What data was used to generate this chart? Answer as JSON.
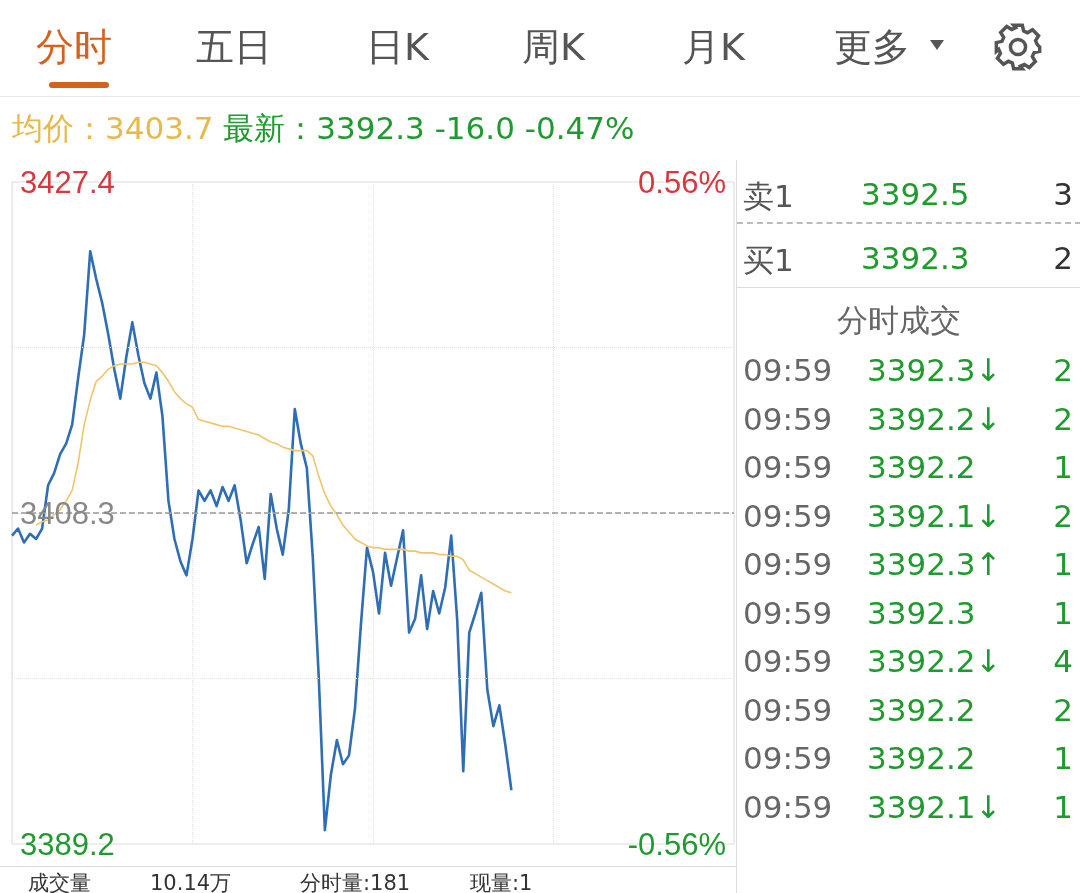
{
  "chart_data": [
    {
      "type": "line",
      "title": "均价：3403.7",
      "subtitle": "最新：3392.3 -16.0 -0.47%",
      "categories": [
        null,
        null,
        null,
        null,
        null,
        null,
        null,
        null,
        null,
        null,
        null,
        null,
        null,
        null,
        null,
        null,
        null,
        null,
        null,
        null,
        null,
        null,
        null,
        null,
        null,
        null,
        null,
        null,
        null,
        null,
        null,
        null,
        null,
        null,
        null,
        null,
        null,
        null,
        null,
        null,
        null,
        null,
        null,
        null,
        null,
        null,
        null,
        null,
        null,
        null,
        null,
        null,
        null,
        null,
        null,
        null,
        null,
        null,
        null,
        null,
        null,
        null,
        null,
        null,
        null,
        null,
        null,
        null,
        null,
        null,
        null,
        null,
        null,
        null,
        null,
        null,
        null,
        null,
        null,
        null,
        null,
        null,
        null,
        null,
        null,
        null,
        null,
        null,
        null,
        null,
        null,
        null,
        null,
        null,
        null,
        null,
        null,
        null,
        null,
        null,
        null,
        null,
        null,
        null,
        null,
        null,
        null,
        null,
        null,
        null,
        null,
        null,
        null,
        null,
        null,
        null,
        null,
        null,
        null,
        null,
        null
      ],
      "series": [
        {
          "color": "#2f6db5",
          "values": [
            3407.0,
            3407.4,
            3406.6,
            3407.1,
            3406.8,
            3407.4,
            3409.9,
            3410.6,
            3411.7,
            3412.3,
            3413.4,
            3416.1,
            3418.6,
            3423.4,
            3421.8,
            3420.4,
            3418.6,
            3416.6,
            3414.9,
            3417.3,
            3419.3,
            3417.4,
            3415.8,
            3414.9,
            3416.4,
            3413.9,
            3409.0,
            3406.8,
            3405.5,
            3404.7,
            3406.8,
            3409.6,
            3409.0,
            3409.6,
            3408.7,
            3409.8,
            3409.0,
            3409.9,
            3407.9,
            3405.4,
            3406.5,
            3407.5,
            3404.5,
            3409.4,
            3407.4,
            3405.9,
            3408.5,
            3414.3,
            3412.3,
            3410.9,
            3405.7,
            3398.7,
            3390.0,
            3393.2,
            3395.2,
            3393.8,
            3394.3,
            3397.0,
            3401.9,
            3406.3,
            3404.9,
            3402.5,
            3406.0,
            3404.1,
            3405.7,
            3407.3,
            3401.4,
            3402.2,
            3404.7,
            3401.6,
            3403.8,
            3402.5,
            3404.0,
            3407.0,
            3402.1,
            3393.4,
            3401.4,
            3402.5,
            3403.7,
            3398.1,
            3396.0,
            3397.2,
            3394.9,
            3392.3,
            null,
            null,
            null,
            null,
            null,
            null,
            null,
            null,
            null,
            null,
            null,
            null,
            null,
            null,
            null,
            null,
            null,
            null,
            null,
            null,
            null,
            null,
            null,
            null,
            null,
            null,
            null,
            null,
            null,
            null,
            null,
            null,
            null,
            null,
            null,
            null,
            null
          ]
        },
        {
          "color": "#f0c46a",
          "values": [
            null,
            null,
            null,
            null,
            3407.6,
            3407.8,
            3407.9,
            3408.2,
            3408.5,
            3409.0,
            3409.6,
            3411.2,
            3413.4,
            3414.8,
            3415.9,
            3416.2,
            3416.6,
            3416.8,
            3416.9,
            3416.9,
            3416.9,
            3417.0,
            3417.0,
            3416.9,
            3416.8,
            3416.4,
            3415.9,
            3415.3,
            3414.9,
            3414.6,
            3414.4,
            3413.7,
            3413.6,
            3413.5,
            3413.4,
            3413.3,
            3413.3,
            3413.2,
            3413.1,
            3413.0,
            3412.9,
            3412.8,
            3412.6,
            3412.4,
            3412.3,
            3412.1,
            3412.0,
            3411.9,
            3411.9,
            3411.9,
            3411.6,
            3410.4,
            3409.4,
            3408.7,
            3408.2,
            3407.6,
            3407.2,
            3406.8,
            3406.6,
            3406.4,
            3406.3,
            3406.3,
            3406.2,
            3406.2,
            3406.2,
            3406.2,
            3406.1,
            3406.1,
            3406.0,
            3406.0,
            3406.0,
            3405.9,
            3405.9,
            3405.8,
            3405.8,
            3405.6,
            3405.0,
            3404.8,
            3404.6,
            3404.4,
            3404.2,
            3404.0,
            3403.8,
            3403.7,
            null,
            null,
            null,
            null,
            null,
            null,
            null,
            null,
            null,
            null,
            null,
            null,
            null,
            null,
            null,
            null,
            null,
            null,
            null,
            null,
            null,
            null,
            null,
            null,
            null,
            null,
            null,
            null,
            null,
            null,
            null,
            null,
            null,
            null,
            null,
            null,
            null
          ]
        }
      ],
      "ylim": [
        3389.2,
        3427.4
      ],
      "yticks": [
        {
          "value": 3389.2,
          "label": "3389.2"
        },
        {
          "value": 3398.75,
          "label": null
        },
        {
          "value": 3408.3,
          "label": "3408.3"
        },
        {
          "value": 3417.85,
          "label": null
        },
        {
          "value": 3427.4,
          "label": "3427.4"
        }
      ],
      "y2lim": [
        -0.56,
        0.56
      ],
      "y2ticks": [
        {
          "value": -0.56,
          "label": "-0.56%"
        },
        {
          "value": 0.56,
          "label": "0.56%"
        }
      ],
      "ref_lines": [
        {
          "axis": "y",
          "value": 3408.3,
          "color": "#999999",
          "line_style": "dashed"
        }
      ],
      "grid": true,
      "tick_labels": "y",
      "annotations": [
        "成交量",
        "10.14万",
        "分时量:181",
        "现量:1"
      ]
    },
    {
      "type": "other",
      "annotations": [
        "分时",
        "五日",
        "日K",
        "周K",
        "月K",
        "更多"
      ]
    },
    {
      "type": "other",
      "annotations": [
        "卖1",
        "3392.5",
        "3",
        "买1",
        "3392.3",
        "2",
        "分时成交",
        "09:59",
        "3392.3↓",
        "2",
        "09:59",
        "3392.2↓",
        "2",
        "09:59",
        "3392.2",
        "1",
        "09:59",
        "3392.1↓",
        "2",
        "09:59",
        "3392.3↑",
        "1",
        "09:59",
        "3392.3",
        "1",
        "09:59",
        "3392.2↓",
        "4",
        "09:59",
        "3392.2",
        "2",
        "09:59",
        "3392.2",
        "1",
        "09:59",
        "3392.1↓",
        "1"
      ]
    }
  ]
}
